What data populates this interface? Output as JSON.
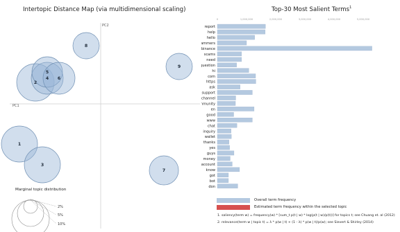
{
  "left": {
    "title": "Intertopic Distance Map (via multidimensional scaling)",
    "axis_labels": {
      "pc1": "PC1",
      "pc2": "PC2"
    },
    "topics": [
      {
        "label": "1"
      },
      {
        "label": "2"
      },
      {
        "label": "3"
      },
      {
        "label": "4"
      },
      {
        "label": "5"
      },
      {
        "label": "6"
      },
      {
        "label": "7"
      },
      {
        "label": "8"
      },
      {
        "label": "9"
      }
    ],
    "marginal": {
      "title": "Marginal topic distribution",
      "levels": [
        "2%",
        "5%",
        "10%"
      ]
    }
  },
  "right": {
    "title": "Top-30 Most Salient Terms",
    "title_sup": "1",
    "legend": {
      "overall": "Overall term frequency",
      "estimated": "Estimated term frequency within the selected topic"
    },
    "footnotes": [
      "1. saliency(term w) = frequency(w) * [sum_t p(t | w) * log(p(t | w)/p(t))] for topics t; see Chuang et. al (2012)",
      "2. relevance(term w | topic t) = λ * p(w | t) + (1 - λ) * p(w | t)/p(w); see Sievert & Shirley (2014)"
    ],
    "colors": {
      "overall": "#b4c9e0",
      "estimated": "#d6504f",
      "bar_stroke": "#9ab0cc"
    }
  },
  "chart_data": {
    "type": "bar",
    "orientation": "horizontal",
    "title": "Top-30 Most Salient Terms",
    "tick_labels": [
      "0",
      "1,000,000",
      "2,000,000",
      "3,000,000",
      "4,000,000",
      "5,000,000"
    ],
    "xlim": [
      0,
      5500000
    ],
    "categories": [
      "report",
      "help",
      "hello",
      "scammers",
      "binance",
      "scams",
      "need",
      "question",
      "hi",
      "com",
      "https",
      "ask",
      "support",
      "channel",
      "community",
      "en",
      "good",
      "www",
      "chat",
      "inquiry",
      "wallet",
      "thanks",
      "yes",
      "guys",
      "money",
      "account",
      "know",
      "got",
      "bot",
      "don"
    ],
    "series": [
      {
        "values": [
          1650000,
          1640000,
          1280000,
          1000000,
          5300000,
          830000,
          830000,
          660000,
          1080000,
          1310000,
          1320000,
          780000,
          1200000,
          630000,
          620000,
          1260000,
          560000,
          1200000,
          670000,
          470000,
          480000,
          400000,
          420000,
          570000,
          440000,
          510000,
          760000,
          380000,
          380000,
          700000
        ]
      }
    ]
  }
}
